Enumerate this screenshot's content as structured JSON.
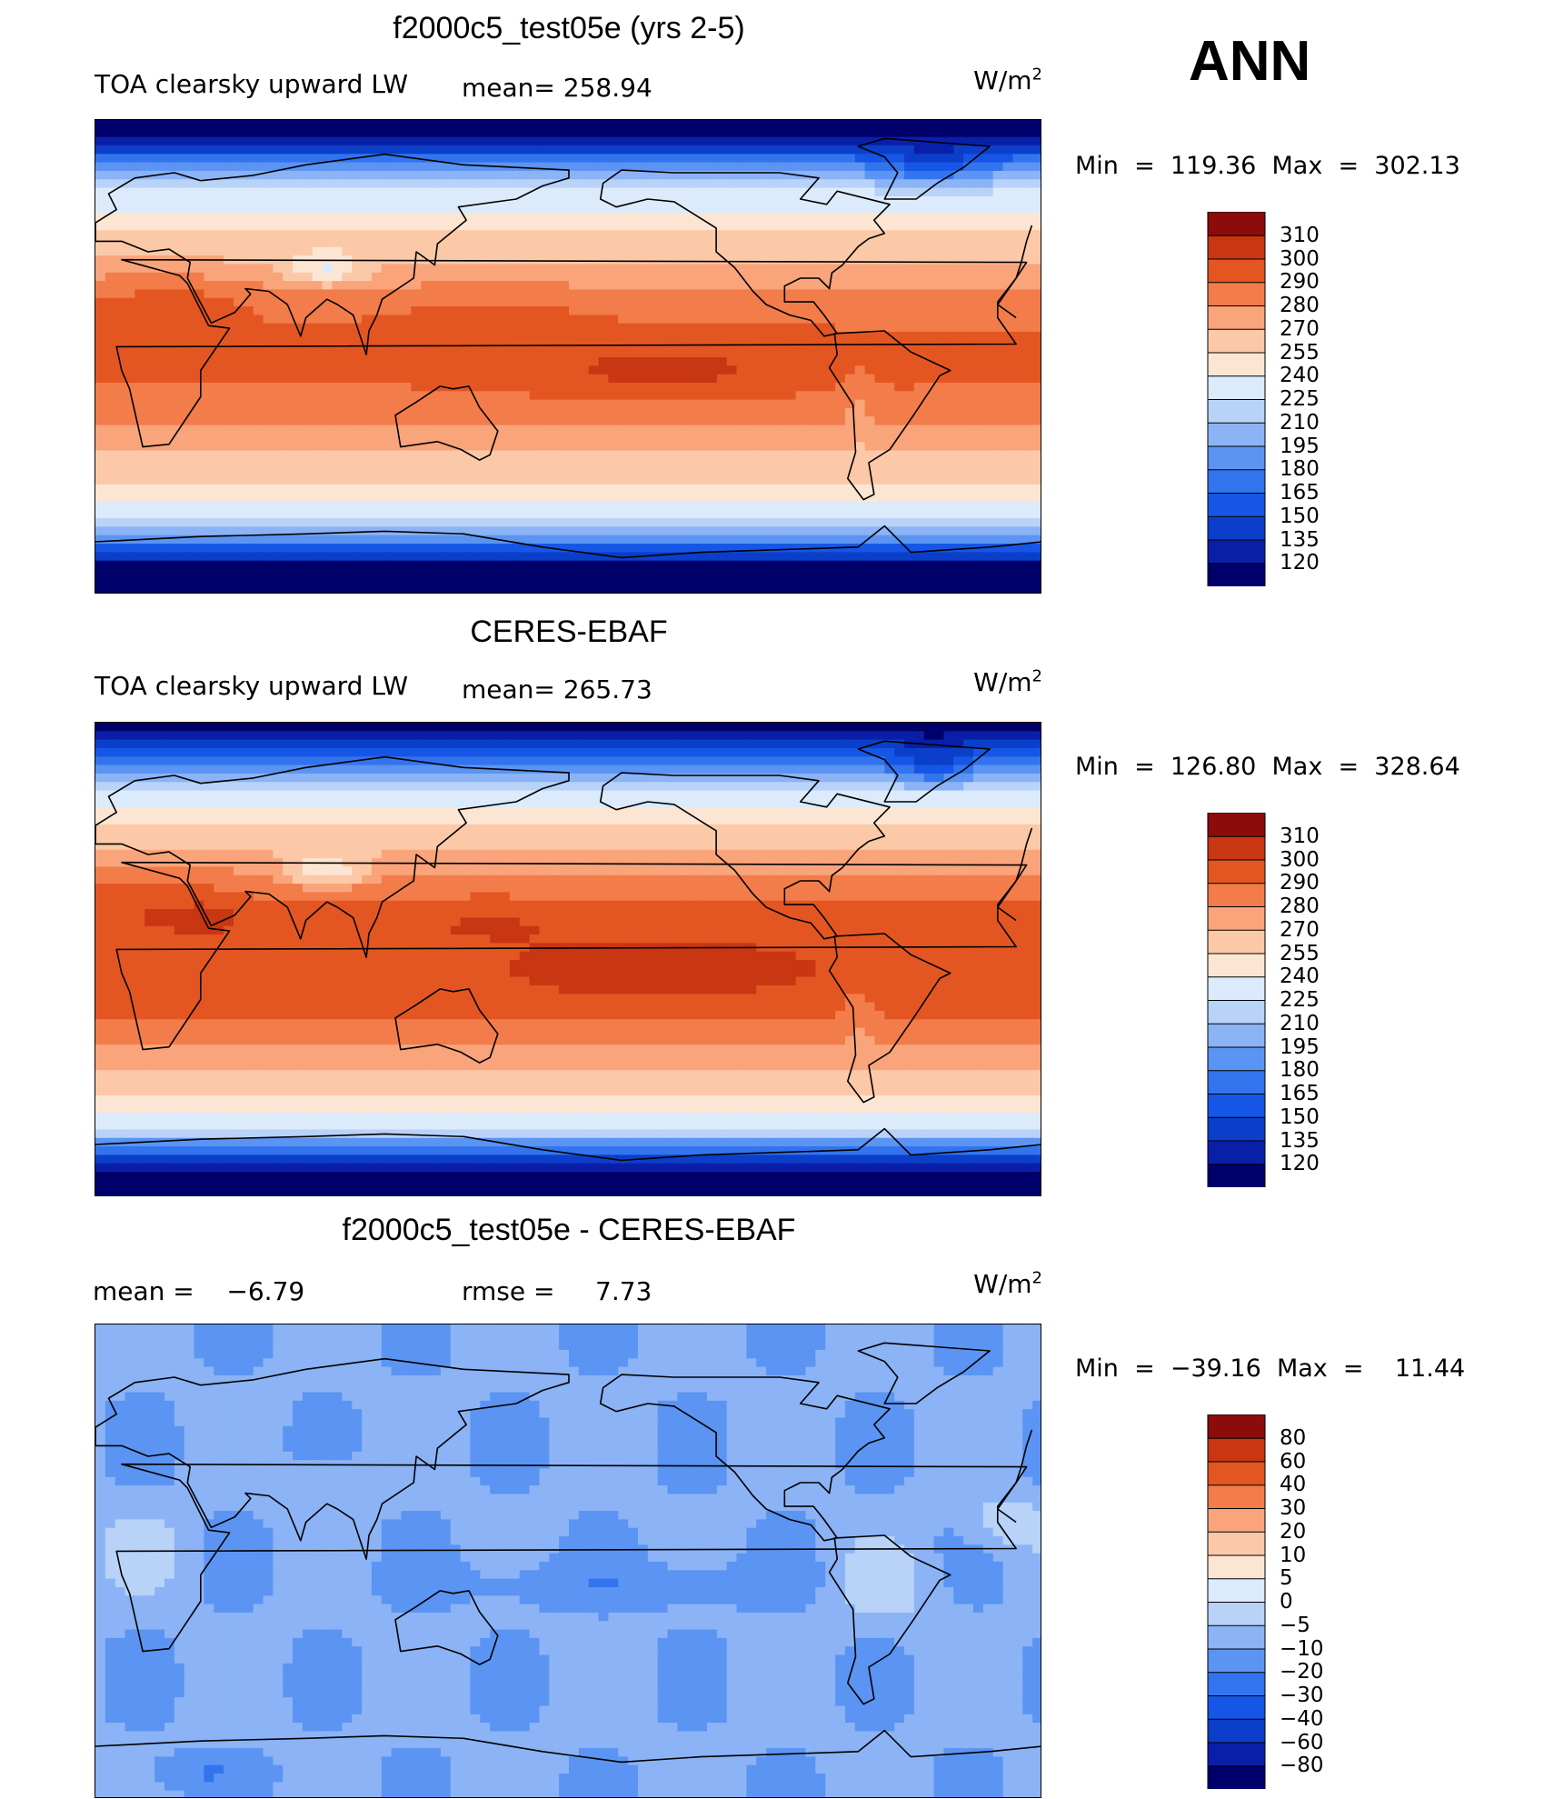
{
  "season": "ANN",
  "chart_data": [
    {
      "type": "heatmap",
      "title": "f2000c5_test05e (yrs 2-5)",
      "variable": "TOA clearsky upward LW",
      "mean_label": "mean=",
      "mean": "258.94",
      "units": "W/m",
      "units_exp": "2",
      "min_label": "Min  =  119.36  Max  =  302.13",
      "min": 119.36,
      "max": 302.13,
      "levels": [
        "120",
        "135",
        "150",
        "165",
        "180",
        "195",
        "210",
        "225",
        "240",
        "255",
        "270",
        "280",
        "290",
        "300",
        "310"
      ],
      "colormap": [
        "#00006b",
        "#0a1fa8",
        "#0b3fc9",
        "#1656e6",
        "#3274ee",
        "#5b94f2",
        "#8bb3f5",
        "#b8d2f8",
        "#dcebfb",
        "#fce6d3",
        "#fbc9a7",
        "#f9a47a",
        "#f27c4a",
        "#e35622",
        "#c93612",
        "#8c0c0c"
      ]
    },
    {
      "type": "heatmap",
      "title": "CERES-EBAF",
      "variable": "TOA clearsky upward LW",
      "mean_label": "mean=",
      "mean": "265.73",
      "units": "W/m",
      "units_exp": "2",
      "min_label": "Min  =  126.80  Max  =  328.64",
      "min": 126.8,
      "max": 328.64,
      "levels": [
        "120",
        "135",
        "150",
        "165",
        "180",
        "195",
        "210",
        "225",
        "240",
        "255",
        "270",
        "280",
        "290",
        "300",
        "310"
      ],
      "colormap": [
        "#00006b",
        "#0a1fa8",
        "#0b3fc9",
        "#1656e6",
        "#3274ee",
        "#5b94f2",
        "#8bb3f5",
        "#b8d2f8",
        "#dcebfb",
        "#fce6d3",
        "#fbc9a7",
        "#f9a47a",
        "#f27c4a",
        "#e35622",
        "#c93612",
        "#8c0c0c"
      ]
    },
    {
      "type": "heatmap",
      "title": "f2000c5_test05e - CERES-EBAF",
      "mean_label": "mean  =",
      "mean": "−6.79",
      "rmse_label": "rmse  =",
      "rmse": "7.73",
      "units": "W/m",
      "units_exp": "2",
      "min_label": "Min  =  −39.16  Max  =    11.44",
      "min": -39.16,
      "max": 11.44,
      "levels": [
        "−80",
        "−60",
        "−40",
        "−30",
        "−20",
        "−10",
        "−5",
        "0",
        "5",
        "10",
        "20",
        "30",
        "40",
        "60",
        "80"
      ],
      "colormap": [
        "#00006b",
        "#0a1fa8",
        "#0b3fc9",
        "#1656e6",
        "#3274ee",
        "#5b94f2",
        "#8bb3f5",
        "#b8d2f8",
        "#dcebfb",
        "#fce6d3",
        "#fbc9a7",
        "#f9a47a",
        "#f27c4a",
        "#e35622",
        "#c93612",
        "#8c0c0c"
      ]
    }
  ]
}
